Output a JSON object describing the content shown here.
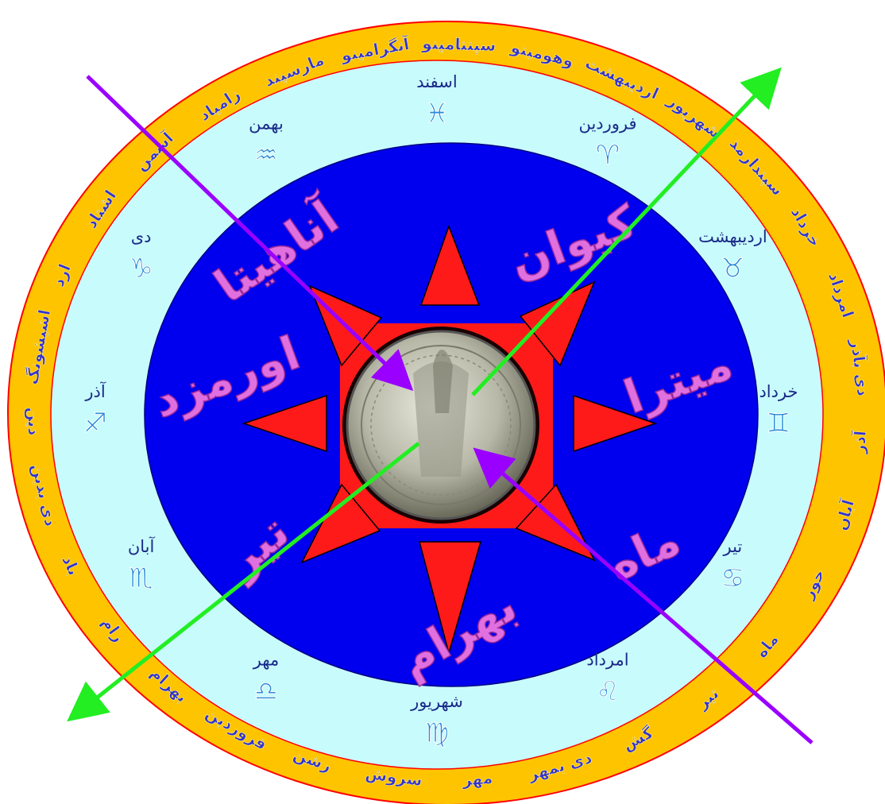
{
  "colors": {
    "outer_ring": "#ffc400",
    "outer_stroke": "#ff0000",
    "middle_ring": "#c8fbfb",
    "inner_disc": "#0000ee",
    "star": "#ff1a1a",
    "coin": "#b8b8a8",
    "arrow_purple": "#9a00ff",
    "arrow_green": "#22ee22",
    "outer_text": "#3333cc",
    "month_text": "#1a2a8a",
    "deity_text": "#e070e0"
  },
  "outer_ring_names": [
    "آنگرامینو",
    "سپنتامینو",
    "وهومینو",
    "اردیبهشت",
    "شهریور",
    "سپندارمذ",
    "خرداد",
    "امرداد",
    "دی بآذر",
    "آذر",
    "آبان",
    "خور",
    "ماه",
    "تیر",
    "گش",
    "دی بمهر",
    "مهر",
    "سروش",
    "رشن",
    "فروردین",
    "بهرام",
    "رام",
    "باد",
    "دی بدین",
    "دین",
    "اشیشونگ",
    "ارد",
    "اشتاد",
    "آسمن",
    "زامیاد",
    "مارسپند"
  ],
  "months": [
    {
      "name": "اسفند",
      "sign": "♓"
    },
    {
      "name": "فروردین",
      "sign": "♈"
    },
    {
      "name": "اردیبهشت",
      "sign": "♉"
    },
    {
      "name": "خرداد",
      "sign": "♊"
    },
    {
      "name": "تیر",
      "sign": "♋"
    },
    {
      "name": "امرداد",
      "sign": "♌"
    },
    {
      "name": "شهریور",
      "sign": "♍"
    },
    {
      "name": "مهر",
      "sign": "♎"
    },
    {
      "name": "آبان",
      "sign": "♏"
    },
    {
      "name": "آذر",
      "sign": "♐"
    },
    {
      "name": "دی",
      "sign": "♑"
    },
    {
      "name": "بهمن",
      "sign": "♒"
    }
  ],
  "deities": [
    "کیوان",
    "میترا",
    "ماه",
    "بهرام",
    "تیر",
    "اورمزد",
    "آناهیتا"
  ]
}
